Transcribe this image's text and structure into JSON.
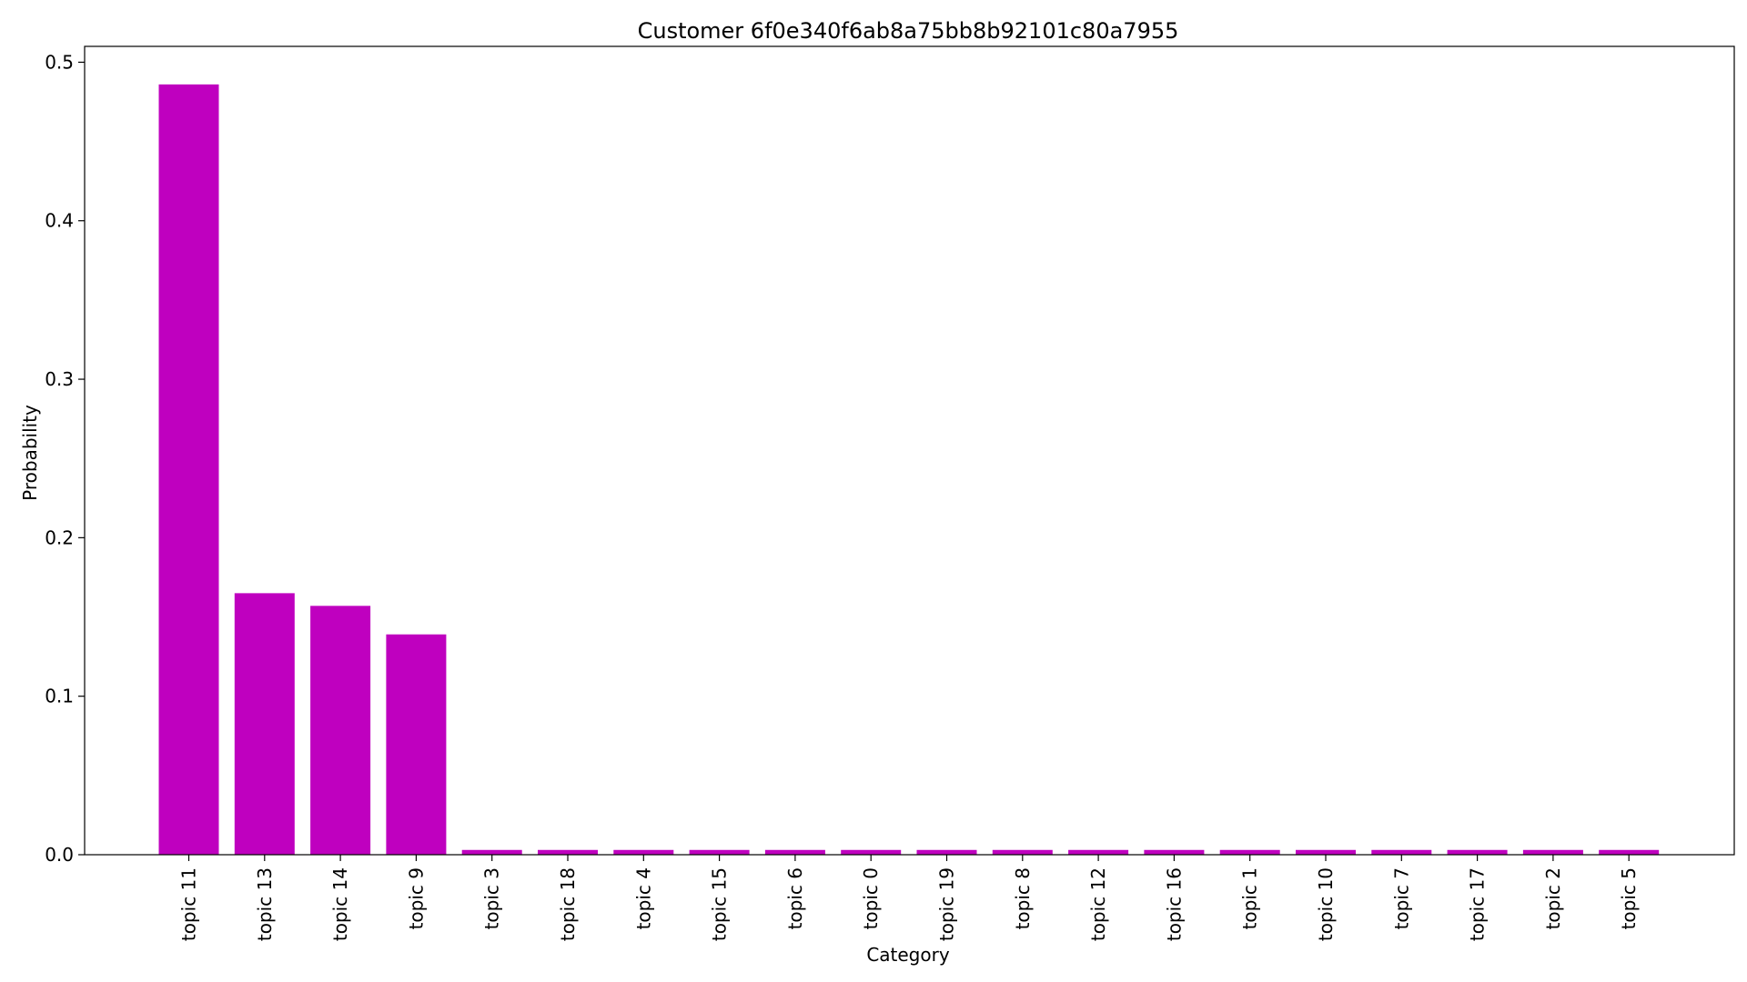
{
  "chart_data": {
    "type": "bar",
    "title": "Customer 6f0e340f6ab8a75bb8b92101c80a7955",
    "xlabel": "Category",
    "ylabel": "Probability",
    "ylim": [
      0,
      0.51
    ],
    "yticks": [
      0.0,
      0.1,
      0.2,
      0.3,
      0.4,
      0.5
    ],
    "ytick_labels": [
      "0.0",
      "0.1",
      "0.2",
      "0.3",
      "0.4",
      "0.5"
    ],
    "grid": false,
    "bar_color": "#bf00bf",
    "categories": [
      "topic 11",
      "topic 13",
      "topic 14",
      "topic 9",
      "topic 3",
      "topic 18",
      "topic 4",
      "topic 15",
      "topic 6",
      "topic 0",
      "topic 19",
      "topic 8",
      "topic 12",
      "topic 16",
      "topic 1",
      "topic 10",
      "topic 7",
      "topic 17",
      "topic 2",
      "topic 5"
    ],
    "values": [
      0.486,
      0.165,
      0.157,
      0.139,
      0.003,
      0.003,
      0.003,
      0.003,
      0.003,
      0.003,
      0.003,
      0.003,
      0.003,
      0.003,
      0.003,
      0.003,
      0.003,
      0.003,
      0.003,
      0.003
    ]
  }
}
